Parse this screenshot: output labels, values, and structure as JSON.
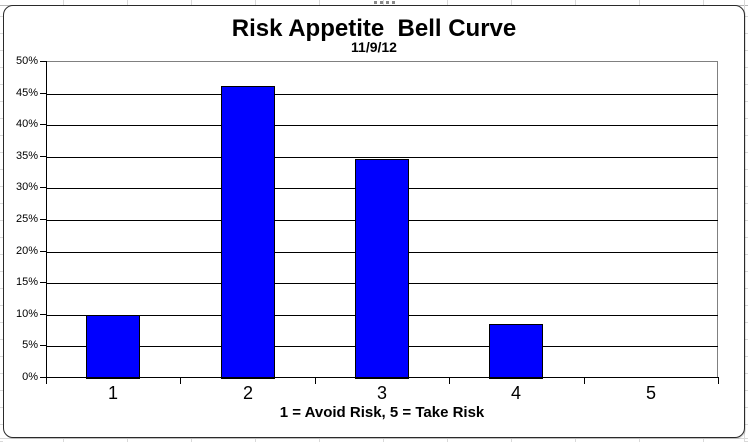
{
  "sheet": {
    "grid_color": "#d9d9d9",
    "background": "#ffffff"
  },
  "chart_data": {
    "type": "bar",
    "title": "Risk Appetite  Bell Curve",
    "subtitle": "11/9/12",
    "categories": [
      "1",
      "2",
      "3",
      "4",
      "5"
    ],
    "values": [
      10.1,
      46.4,
      34.8,
      8.7,
      0
    ],
    "xlabel": "1 = Avoid Risk, 5 = Take Risk",
    "ylabel": "",
    "ylim": [
      0,
      50
    ],
    "ytick_step": 5,
    "ytick_labels": [
      "0%",
      "5%",
      "10%",
      "15%",
      "20%",
      "25%",
      "30%",
      "35%",
      "40%",
      "45%",
      "50%"
    ],
    "grid": true,
    "legend": "none",
    "bar_color": "#0000ff",
    "bar_border_color": "#000000",
    "gridline_color": "#000000",
    "plot_border_color": "#808080",
    "text_color": "#000000"
  }
}
